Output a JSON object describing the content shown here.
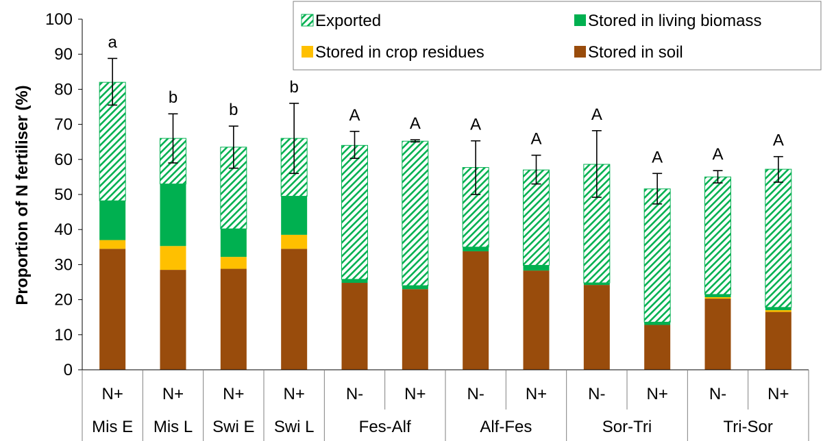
{
  "chart_data": {
    "type": "bar",
    "stacked": true,
    "title": "",
    "xlabel": "",
    "ylabel": "Proportion of N fertiliser (%)",
    "ylim": [
      0,
      100
    ],
    "yticks": [
      0,
      10,
      20,
      30,
      40,
      50,
      60,
      70,
      80,
      90,
      100
    ],
    "grid": false,
    "legend_position": "top-right",
    "categories": [
      "N+",
      "N+",
      "N+",
      "N+",
      "N-",
      "N+",
      "N-",
      "N+",
      "N-",
      "N+",
      "N-",
      "N+"
    ],
    "groups": [
      {
        "label": "Mis E",
        "span": 1
      },
      {
        "label": "Mis L",
        "span": 1
      },
      {
        "label": "Swi E",
        "span": 1
      },
      {
        "label": "Swi L",
        "span": 1
      },
      {
        "label": "Fes-Alf",
        "span": 2
      },
      {
        "label": "Alf-Fes",
        "span": 2
      },
      {
        "label": "Sor-Tri",
        "span": 2
      },
      {
        "label": "Tri-Sor",
        "span": 2
      }
    ],
    "series": [
      {
        "name": "Stored in soil",
        "color": "#994c0c",
        "pattern": "solid",
        "values": [
          34.5,
          28.5,
          28.8,
          34.5,
          24.8,
          23.0,
          33.8,
          28.3,
          24.2,
          12.8,
          20.3,
          16.5
        ]
      },
      {
        "name": "Stored in crop residues",
        "color": "#ffc000",
        "pattern": "solid",
        "values": [
          2.5,
          6.8,
          3.4,
          4.0,
          0,
          0,
          0,
          0,
          0,
          0,
          0.4,
          0.5
        ]
      },
      {
        "name": "Stored in living biomass",
        "color": "#00b050",
        "pattern": "solid",
        "values": [
          11.2,
          17.7,
          8.0,
          11.0,
          1.0,
          1.0,
          1.2,
          1.5,
          0.6,
          0.8,
          0.8,
          0.8
        ]
      },
      {
        "name": "Exported",
        "color": "#00b050",
        "pattern": "hatch",
        "values": [
          33.8,
          13.0,
          23.3,
          16.5,
          38.2,
          41.2,
          22.7,
          27.2,
          33.8,
          38.0,
          33.5,
          39.4
        ]
      }
    ],
    "error_bars": {
      "upper": [
        88.8,
        73.0,
        69.5,
        76.0,
        68.0,
        65.6,
        65.3,
        61.2,
        68.2,
        56.0,
        56.8,
        60.8
      ],
      "lower": [
        75.5,
        59.0,
        57.5,
        56.0,
        60.3,
        65.0,
        50.0,
        53.0,
        49.2,
        47.3,
        53.3,
        53.5
      ]
    },
    "significance_labels": [
      "a",
      "b",
      "b",
      "b",
      "A",
      "A",
      "A",
      "A",
      "A",
      "A",
      "A",
      "A"
    ],
    "legend_order": [
      "Exported",
      "Stored in living biomass",
      "Stored in crop residues",
      "Stored in soil"
    ]
  }
}
